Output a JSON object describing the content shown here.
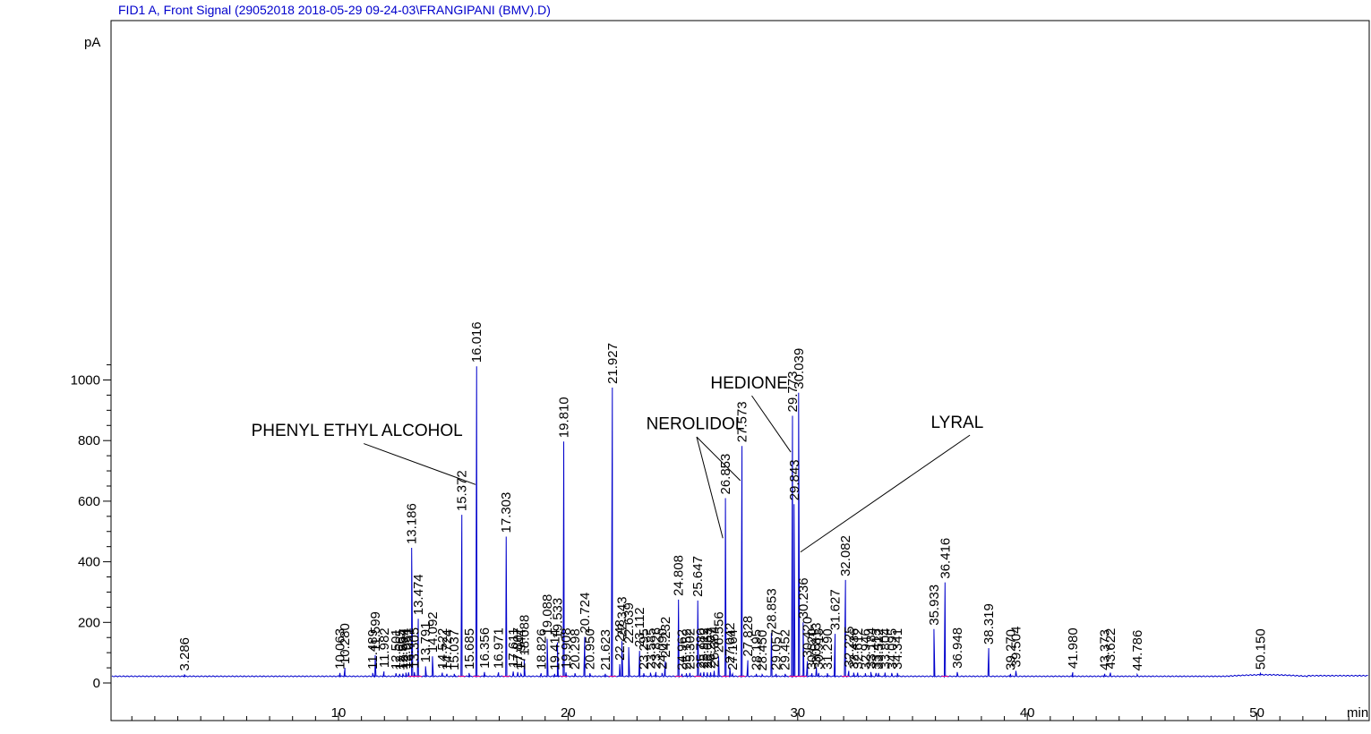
{
  "chart_data": {
    "type": "line",
    "title": "FID1 A, Front Signal (29052018 2018-05-29 09-24-03\\FRANGIPANI (BMV).D)",
    "ylabel": "pA",
    "xlabel": "min",
    "xlim": [
      0,
      55
    ],
    "ylim": [
      -15,
      1065
    ],
    "x_ticks": [
      10,
      20,
      30,
      40,
      50
    ],
    "y_ticks": [
      0,
      200,
      400,
      600,
      800,
      1000
    ],
    "baseline": 22,
    "colors": {
      "signal": "#0000cc",
      "integration": "#e0008a",
      "title": "#0000cc",
      "frame": "#000000"
    },
    "peaks": [
      {
        "rt": 3.286,
        "label": "3.286",
        "h": 28
      },
      {
        "rt": 10.063,
        "label": "10.063",
        "h": 33
      },
      {
        "rt": 10.28,
        "label": "10.280",
        "h": 50
      },
      {
        "rt": 11.489,
        "label": "11.489",
        "h": 33
      },
      {
        "rt": 11.599,
        "label": "11.599",
        "h": 92
      },
      {
        "rt": 11.982,
        "label": "11.982",
        "h": 38
      },
      {
        "rt": 12.501,
        "label": "12.501",
        "h": 32
      },
      {
        "rt": 12.665,
        "label": "12.665",
        "h": 30
      },
      {
        "rt": 12.804,
        "label": "12.804",
        "h": 31
      },
      {
        "rt": 12.934,
        "label": "12.934",
        "h": 34
      },
      {
        "rt": 13.051,
        "label": "13.051",
        "h": 35
      },
      {
        "rt": 13.186,
        "label": "13.186",
        "h": 446
      },
      {
        "rt": 13.305,
        "label": "13.305",
        "h": 36
      },
      {
        "rt": 13.474,
        "label": "13.474",
        "h": 212
      },
      {
        "rt": 13.791,
        "label": "13.791",
        "h": 55
      },
      {
        "rt": 14.092,
        "label": "14.092",
        "h": 88
      },
      {
        "rt": 14.522,
        "label": "14.522",
        "h": 34
      },
      {
        "rt": 14.724,
        "label": "14.724",
        "h": 30
      },
      {
        "rt": 15.037,
        "label": "15.037",
        "h": 30
      },
      {
        "rt": 15.372,
        "label": "15.372",
        "h": 555
      },
      {
        "rt": 15.685,
        "label": "15.685",
        "h": 33
      },
      {
        "rt": 16.016,
        "label": "16.016",
        "h": 1045
      },
      {
        "rt": 16.356,
        "label": "16.356",
        "h": 36
      },
      {
        "rt": 16.971,
        "label": "16.971",
        "h": 35
      },
      {
        "rt": 17.303,
        "label": "17.303",
        "h": 483
      },
      {
        "rt": 17.611,
        "label": "17.611",
        "h": 38
      },
      {
        "rt": 17.807,
        "label": "17.807",
        "h": 36
      },
      {
        "rt": 17.944,
        "label": "17.944",
        "h": 30
      },
      {
        "rt": 18.088,
        "label": "18.088",
        "h": 78
      },
      {
        "rt": 18.826,
        "label": "18.826",
        "h": 32
      },
      {
        "rt": 19.088,
        "label": "19.088",
        "h": 146
      },
      {
        "rt": 19.414,
        "label": "19.414",
        "h": 30
      },
      {
        "rt": 19.533,
        "label": "19.533",
        "h": 134
      },
      {
        "rt": 19.81,
        "label": "19.810",
        "h": 797
      },
      {
        "rt": 19.908,
        "label": "19.908",
        "h": 35
      },
      {
        "rt": 20.298,
        "label": "20.298",
        "h": 32
      },
      {
        "rt": 20.724,
        "label": "20.724",
        "h": 152
      },
      {
        "rt": 20.95,
        "label": "20.950",
        "h": 32
      },
      {
        "rt": 21.623,
        "label": "21.623",
        "h": 30
      },
      {
        "rt": 21.927,
        "label": "21.927",
        "h": 975
      },
      {
        "rt": 22.248,
        "label": "22.248",
        "h": 62
      },
      {
        "rt": 22.343,
        "label": "22.343",
        "h": 138
      },
      {
        "rt": 22.639,
        "label": "22.639",
        "h": 118
      },
      {
        "rt": 23.112,
        "label": "23.112",
        "h": 106
      },
      {
        "rt": 23.295,
        "label": "23.295",
        "h": 32
      },
      {
        "rt": 23.585,
        "label": "23.585",
        "h": 34
      },
      {
        "rt": 23.826,
        "label": "23.826",
        "h": 36
      },
      {
        "rt": 24.09,
        "label": "24.090",
        "h": 33
      },
      {
        "rt": 24.232,
        "label": "24.232",
        "h": 72
      },
      {
        "rt": 24.808,
        "label": "24.808",
        "h": 275
      },
      {
        "rt": 24.962,
        "label": "24.962",
        "h": 30
      },
      {
        "rt": 25.152,
        "label": "25.152",
        "h": 32
      },
      {
        "rt": 25.302,
        "label": "25.302",
        "h": 33
      },
      {
        "rt": 25.647,
        "label": "25.647",
        "h": 272
      },
      {
        "rt": 25.78,
        "label": "25.780",
        "h": 34
      },
      {
        "rt": 25.912,
        "label": "25.912",
        "h": 36
      },
      {
        "rt": 26.063,
        "label": "26.063",
        "h": 35
      },
      {
        "rt": 26.207,
        "label": "26.207",
        "h": 35
      },
      {
        "rt": 26.364,
        "label": "26.364",
        "h": 40
      },
      {
        "rt": 26.556,
        "label": "26.556",
        "h": 88
      },
      {
        "rt": 26.853,
        "label": "26.853",
        "h": 610
      },
      {
        "rt": 27.042,
        "label": "27.042",
        "h": 52
      },
      {
        "rt": 27.164,
        "label": "27.164",
        "h": 30
      },
      {
        "rt": 27.573,
        "label": "27.573",
        "h": 782
      },
      {
        "rt": 27.828,
        "label": "27.828",
        "h": 75
      },
      {
        "rt": 28.195,
        "label": "28.195",
        "h": 30
      },
      {
        "rt": 28.45,
        "label": "28.450",
        "h": 28
      },
      {
        "rt": 28.853,
        "label": "28.853",
        "h": 165
      },
      {
        "rt": 29.057,
        "label": "29.057",
        "h": 30
      },
      {
        "rt": 29.452,
        "label": "29.452",
        "h": 30
      },
      {
        "rt": 29.773,
        "label": "29.773",
        "h": 882
      },
      {
        "rt": 29.843,
        "label": "29.843",
        "h": 590
      },
      {
        "rt": 30.039,
        "label": "30.039",
        "h": 958
      },
      {
        "rt": 30.236,
        "label": "30.236",
        "h": 200
      },
      {
        "rt": 30.42,
        "label": "30.420",
        "h": 72
      },
      {
        "rt": 30.62,
        "label": "30.620",
        "h": 32
      },
      {
        "rt": 30.813,
        "label": "30.813",
        "h": 52
      },
      {
        "rt": 30.913,
        "label": "30.913",
        "h": 33
      },
      {
        "rt": 31.29,
        "label": "31.290",
        "h": 32
      },
      {
        "rt": 31.627,
        "label": "31.627",
        "h": 162
      },
      {
        "rt": 32.082,
        "label": "32.082",
        "h": 340
      },
      {
        "rt": 32.225,
        "label": "32.225",
        "h": 40
      },
      {
        "rt": 32.436,
        "label": "32.436",
        "h": 34
      },
      {
        "rt": 32.612,
        "label": "32.612",
        "h": 34
      },
      {
        "rt": 32.946,
        "label": "32.946",
        "h": 32
      },
      {
        "rt": 33.184,
        "label": "33.184",
        "h": 36
      },
      {
        "rt": 33.413,
        "label": "33.413",
        "h": 33
      },
      {
        "rt": 33.522,
        "label": "33.522",
        "h": 33
      },
      {
        "rt": 33.804,
        "label": "33.804",
        "h": 34
      },
      {
        "rt": 34.095,
        "label": "34.095",
        "h": 33
      },
      {
        "rt": 34.341,
        "label": "34.341",
        "h": 33
      },
      {
        "rt": 35.933,
        "label": "35.933",
        "h": 178
      },
      {
        "rt": 36.416,
        "label": "36.416",
        "h": 332
      },
      {
        "rt": 36.948,
        "label": "36.948",
        "h": 36
      },
      {
        "rt": 38.319,
        "label": "38.319",
        "h": 115
      },
      {
        "rt": 39.27,
        "label": "39.270",
        "h": 30
      },
      {
        "rt": 39.504,
        "label": "39.504",
        "h": 40
      },
      {
        "rt": 41.98,
        "label": "41.980",
        "h": 35
      },
      {
        "rt": 43.373,
        "label": "43.373",
        "h": 30
      },
      {
        "rt": 43.622,
        "label": "43.622",
        "h": 34
      },
      {
        "rt": 44.786,
        "label": "44.786",
        "h": 28
      },
      {
        "rt": 50.15,
        "label": "50.150",
        "h": 32
      }
    ],
    "annotations": [
      {
        "text": "PHENYL ETHYL ALCOHOL",
        "text_rt": 6.2,
        "text_y": 815,
        "line_from": [
          11.1,
          790
        ],
        "line_to": [
          [
            15.97,
            655
          ]
        ]
      },
      {
        "text": "NEROLIDOL",
        "text_rt": 23.4,
        "text_y": 837,
        "line_from": [
          25.6,
          812
        ],
        "line_to": [
          [
            26.74,
            478
          ],
          [
            27.5,
            668
          ]
        ]
      },
      {
        "text": "HEDIONE",
        "text_rt": 26.2,
        "text_y": 972,
        "line_from": [
          28.0,
          948
        ],
        "line_to": [
          [
            29.7,
            762
          ]
        ]
      },
      {
        "text": "LYRAL",
        "text_rt": 35.8,
        "text_y": 842,
        "line_from": [
          37.5,
          818
        ],
        "line_to": [
          [
            30.12,
            432
          ]
        ]
      }
    ]
  }
}
